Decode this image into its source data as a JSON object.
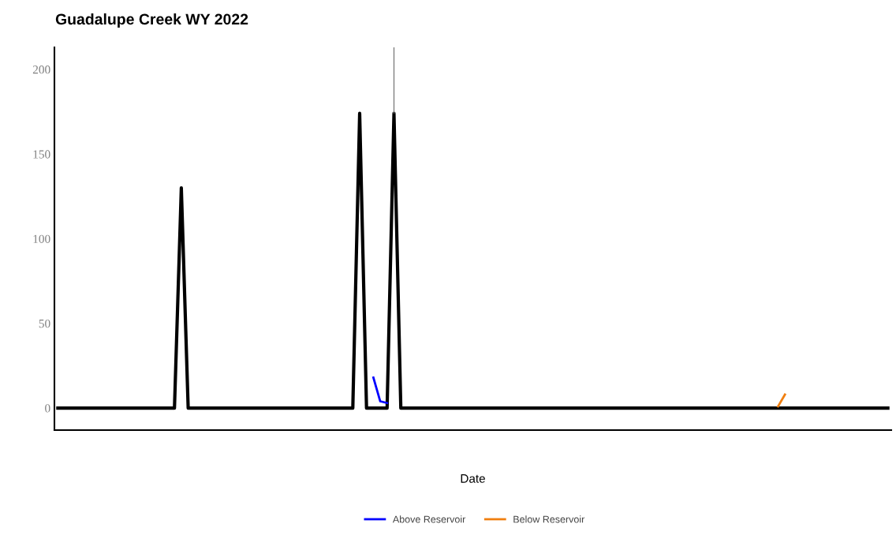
{
  "chart_data": {
    "type": "line",
    "title": "Guadalupe Creek WY 2022",
    "xlabel": "Date",
    "categories": [
      null,
      null,
      null,
      null,
      null,
      null,
      null,
      null,
      null,
      null,
      null,
      null,
      null,
      null,
      null,
      null,
      null,
      null,
      null,
      null,
      null,
      null,
      null,
      null,
      null,
      null,
      null,
      null,
      null,
      null,
      null,
      null,
      null,
      null,
      null,
      null,
      null,
      null,
      null,
      null,
      null,
      null,
      null,
      null,
      null,
      null,
      null,
      null,
      null,
      null,
      null,
      null,
      null,
      null,
      null,
      null,
      null,
      null,
      null,
      null,
      null,
      null,
      null,
      null,
      null,
      null,
      null,
      null,
      null,
      null,
      null,
      null,
      null,
      null,
      null,
      null,
      null,
      null,
      null,
      null,
      null,
      null,
      null,
      null,
      null,
      null,
      null,
      null,
      null,
      null,
      null,
      null,
      null,
      null,
      null,
      null,
      null,
      null,
      null,
      null,
      null,
      null,
      null,
      null,
      null,
      null,
      null,
      null,
      null,
      null,
      null,
      null,
      null,
      null,
      null,
      null,
      null,
      null,
      null,
      null,
      null,
      null
    ],
    "ylim": [
      -13,
      213
    ],
    "yticks": [
      0,
      50,
      100,
      150,
      200
    ],
    "tick_labels": "y",
    "legend": "bottom",
    "series": [
      {
        "color": "#000000",
        "values": [
          0,
          0,
          0,
          0,
          0,
          0,
          0,
          0,
          0,
          0,
          0,
          0,
          0,
          0,
          0,
          0,
          0,
          0,
          130,
          0,
          0,
          0,
          0,
          0,
          0,
          0,
          0,
          0,
          0,
          0,
          0,
          0,
          0,
          0,
          0,
          0,
          0,
          0,
          0,
          0,
          0,
          0,
          0,
          0,
          174,
          0,
          0,
          0,
          0,
          174,
          0,
          0,
          0,
          0,
          0,
          0,
          0,
          0,
          0,
          0,
          0,
          0,
          0,
          0,
          0,
          0,
          0,
          0,
          0,
          0,
          0,
          0,
          0,
          0,
          0,
          0,
          0,
          0,
          0,
          0,
          0,
          0,
          0,
          0,
          0,
          0,
          0,
          0,
          0,
          0,
          0,
          0,
          0,
          0,
          0,
          0,
          0,
          0,
          0,
          0,
          0,
          0,
          0,
          0,
          0,
          0,
          0,
          0,
          0,
          0,
          0,
          0,
          0,
          0,
          0,
          0,
          0,
          0,
          0,
          0,
          0,
          0
        ],
        "errors": [
          null,
          null,
          null,
          null,
          null,
          null,
          null,
          null,
          null,
          null,
          null,
          null,
          null,
          null,
          null,
          null,
          null,
          null,
          null,
          null,
          null,
          null,
          null,
          null,
          null,
          null,
          null,
          null,
          null,
          null,
          null,
          null,
          null,
          null,
          null,
          null,
          null,
          null,
          null,
          null,
          null,
          null,
          null,
          null,
          null,
          null,
          null,
          null,
          null,
          [
            174,
            213
          ],
          null,
          null,
          null,
          null,
          null,
          null,
          null,
          null,
          null,
          null,
          null,
          null,
          null,
          null,
          null,
          null,
          null,
          null,
          null,
          null,
          null,
          null,
          null,
          null,
          null,
          null,
          null,
          null,
          null,
          null,
          null,
          null,
          null,
          null,
          null,
          null,
          null,
          null,
          null,
          null,
          null,
          null,
          null,
          null,
          null,
          null,
          null,
          null,
          null,
          null,
          null,
          null,
          null,
          null,
          null,
          null,
          null,
          null,
          null,
          null,
          null,
          null,
          null,
          null,
          null,
          null,
          null,
          null,
          null,
          null,
          null,
          null
        ]
      },
      {
        "name": "Above Reservoir",
        "color": "#0000ff",
        "values": [
          null,
          null,
          null,
          null,
          null,
          null,
          null,
          null,
          null,
          null,
          null,
          null,
          null,
          null,
          null,
          null,
          null,
          null,
          null,
          null,
          null,
          null,
          null,
          null,
          null,
          null,
          null,
          null,
          null,
          null,
          null,
          null,
          null,
          null,
          null,
          null,
          null,
          null,
          null,
          null,
          null,
          null,
          null,
          null,
          null,
          null,
          18,
          4,
          3,
          null,
          null,
          null,
          null,
          null,
          null,
          null,
          null,
          null,
          null,
          null,
          null,
          null,
          null,
          null,
          null,
          null,
          null,
          null,
          null,
          null,
          null,
          null,
          null,
          null,
          null,
          null,
          null,
          null,
          null,
          null,
          null,
          null,
          null,
          null,
          null,
          null,
          null,
          null,
          null,
          null,
          null,
          null,
          null,
          null,
          null,
          null,
          null,
          null,
          null,
          null,
          null,
          null,
          null,
          null,
          null,
          null,
          null,
          null,
          null,
          null,
          null,
          null,
          null,
          null,
          null,
          null,
          null,
          null,
          null,
          null,
          null,
          null
        ]
      },
      {
        "name": "Below Reservoir",
        "color": "#f07f10",
        "values": [
          null,
          null,
          null,
          null,
          null,
          null,
          null,
          null,
          null,
          null,
          null,
          null,
          null,
          null,
          null,
          null,
          null,
          null,
          null,
          null,
          null,
          null,
          null,
          null,
          null,
          null,
          null,
          null,
          null,
          null,
          null,
          null,
          null,
          null,
          null,
          null,
          null,
          null,
          null,
          null,
          null,
          null,
          null,
          null,
          null,
          null,
          null,
          null,
          null,
          null,
          null,
          null,
          null,
          null,
          null,
          null,
          null,
          null,
          null,
          null,
          null,
          null,
          null,
          null,
          null,
          null,
          null,
          null,
          null,
          null,
          null,
          null,
          null,
          null,
          null,
          null,
          null,
          null,
          null,
          null,
          null,
          null,
          null,
          null,
          null,
          null,
          null,
          null,
          null,
          null,
          null,
          null,
          null,
          null,
          null,
          null,
          null,
          null,
          null,
          null,
          null,
          null,
          null,
          null,
          null,
          1,
          8,
          null,
          null,
          null,
          null,
          null,
          null,
          null,
          null,
          null,
          null,
          null,
          null,
          null,
          null,
          null
        ]
      }
    ]
  }
}
